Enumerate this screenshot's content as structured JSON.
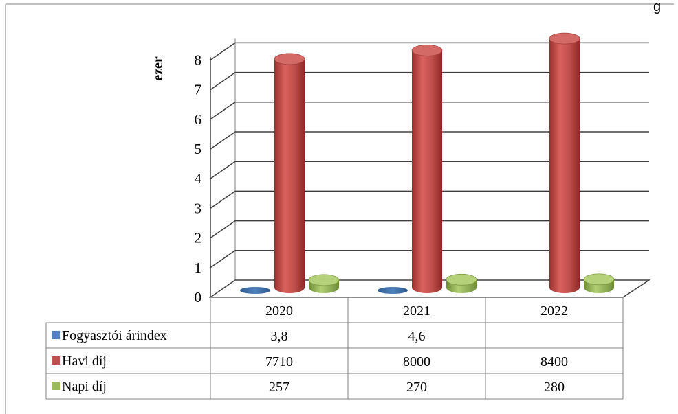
{
  "chart_data": {
    "type": "bar",
    "title": "",
    "ylabel": "ezer",
    "ylim": [
      0,
      8
    ],
    "yticks": [
      "0",
      "1",
      "2",
      "3",
      "4",
      "5",
      "6",
      "7",
      "8"
    ],
    "categories": [
      "2020",
      "2021",
      "2022"
    ],
    "grid": true,
    "legend": "data-table",
    "series": [
      {
        "name": "Fogyasztói árindex",
        "color": "#4F81BD",
        "values": [
          3.8,
          4.6,
          null
        ],
        "labels": [
          "3,8",
          "4,6",
          ""
        ]
      },
      {
        "name": "Havi díj",
        "color": "#C0504D",
        "values": [
          7710,
          8000,
          8400
        ],
        "labels": [
          "7710",
          "8000",
          "8400"
        ]
      },
      {
        "name": "Napi díj",
        "color": "#9BBB59",
        "values": [
          257,
          270,
          280
        ],
        "labels": [
          "257",
          "270",
          "280"
        ]
      }
    ],
    "top_right_fragment": "g"
  }
}
